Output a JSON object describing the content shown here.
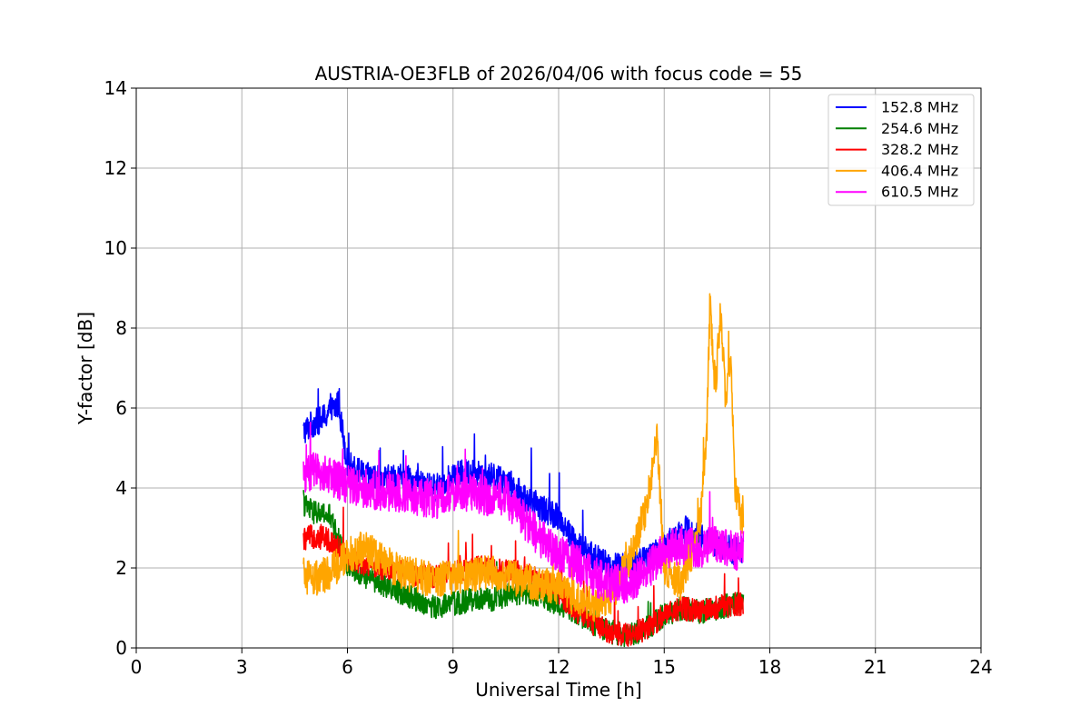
{
  "chart_data": {
    "type": "line",
    "title": "AUSTRIA-OE3FLB of 2026/04/06 with focus code = 55",
    "xlabel": "Universal Time [h]",
    "ylabel": "Y-factor [dB]",
    "xlim": [
      0,
      24
    ],
    "ylim": [
      0,
      14
    ],
    "xticks": [
      0,
      3,
      6,
      9,
      12,
      15,
      18,
      21,
      24
    ],
    "yticks": [
      0,
      2,
      4,
      6,
      8,
      10,
      12,
      14
    ],
    "grid": true,
    "legend_position": "top-right",
    "series": [
      {
        "name": "152.8 MHz",
        "color": "#0000ff",
        "x": [
          4.75,
          5.0,
          5.25,
          5.5,
          5.75,
          6.0,
          6.5,
          7.0,
          7.5,
          8.0,
          8.5,
          9.0,
          9.5,
          10.0,
          10.5,
          11.0,
          11.5,
          12.0,
          12.5,
          13.0,
          13.5,
          14.0,
          14.5,
          15.0,
          15.5,
          16.0,
          16.5,
          17.0,
          17.25
        ],
        "values": [
          5.4,
          5.6,
          5.7,
          5.9,
          6.1,
          4.6,
          4.3,
          4.2,
          4.3,
          4.1,
          4.0,
          4.3,
          4.4,
          4.3,
          4.2,
          3.8,
          3.5,
          3.3,
          2.6,
          2.3,
          2.0,
          2.1,
          2.2,
          2.5,
          3.0,
          2.8,
          2.6,
          2.4,
          2.5
        ]
      },
      {
        "name": "254.6 MHz",
        "color": "#008000",
        "x": [
          4.75,
          5.0,
          5.5,
          6.0,
          6.5,
          7.0,
          7.5,
          8.0,
          8.5,
          9.0,
          9.5,
          10.0,
          10.5,
          11.0,
          11.5,
          12.0,
          12.5,
          13.0,
          13.5,
          14.0,
          14.5,
          15.0,
          15.5,
          16.0,
          16.5,
          17.0,
          17.25
        ],
        "values": [
          3.6,
          3.4,
          3.3,
          2.1,
          1.8,
          1.6,
          1.4,
          1.2,
          1.0,
          1.1,
          1.2,
          1.2,
          1.3,
          1.4,
          1.3,
          1.1,
          0.9,
          0.6,
          0.4,
          0.3,
          0.5,
          0.8,
          1.0,
          0.9,
          1.0,
          1.1,
          1.2
        ]
      },
      {
        "name": "328.2 MHz",
        "color": "#ff0000",
        "x": [
          4.75,
          5.0,
          5.5,
          6.0,
          6.5,
          7.0,
          7.5,
          8.0,
          8.5,
          9.0,
          9.5,
          10.0,
          10.5,
          11.0,
          11.5,
          12.0,
          12.5,
          13.0,
          13.5,
          14.0,
          14.5,
          15.0,
          15.5,
          16.0,
          16.5,
          17.0,
          17.25
        ],
        "values": [
          2.7,
          2.8,
          2.7,
          2.3,
          2.1,
          2.0,
          1.9,
          1.8,
          1.8,
          1.9,
          2.0,
          2.0,
          1.9,
          1.9,
          1.7,
          1.4,
          0.9,
          0.6,
          0.4,
          0.3,
          0.5,
          0.8,
          1.0,
          0.9,
          1.0,
          1.1,
          1.1
        ]
      },
      {
        "name": "406.4 MHz",
        "color": "#ffa500",
        "x": [
          4.75,
          5.0,
          5.5,
          6.0,
          6.5,
          7.0,
          7.5,
          8.0,
          8.5,
          9.0,
          9.5,
          10.0,
          10.5,
          11.0,
          11.5,
          12.0,
          12.5,
          13.0,
          13.5,
          14.0,
          14.5,
          14.8,
          15.0,
          15.5,
          16.0,
          16.2,
          16.3,
          16.45,
          16.6,
          16.75,
          16.9,
          17.0,
          17.25
        ],
        "values": [
          1.8,
          1.7,
          1.9,
          2.3,
          2.5,
          2.2,
          1.9,
          1.8,
          1.7,
          1.8,
          1.8,
          1.9,
          1.8,
          1.7,
          1.6,
          1.5,
          1.2,
          1.1,
          1.3,
          2.2,
          3.5,
          5.3,
          2.0,
          1.6,
          3.0,
          5.0,
          8.6,
          6.5,
          8.4,
          6.2,
          7.4,
          4.0,
          3.0
        ]
      },
      {
        "name": "610.5 MHz",
        "color": "#ff00ff",
        "x": [
          4.75,
          5.0,
          5.5,
          6.0,
          6.5,
          7.0,
          7.5,
          8.0,
          8.5,
          9.0,
          9.5,
          10.0,
          10.5,
          11.0,
          11.5,
          12.0,
          12.5,
          13.0,
          13.5,
          14.0,
          14.5,
          15.0,
          15.5,
          16.0,
          16.5,
          17.0,
          17.25
        ],
        "values": [
          4.3,
          4.4,
          4.3,
          4.1,
          4.0,
          3.9,
          3.9,
          3.8,
          3.7,
          3.9,
          3.9,
          3.8,
          3.8,
          3.2,
          2.7,
          2.4,
          2.1,
          1.8,
          1.6,
          1.6,
          1.9,
          2.4,
          2.6,
          2.5,
          2.6,
          2.4,
          2.5
        ]
      }
    ]
  }
}
